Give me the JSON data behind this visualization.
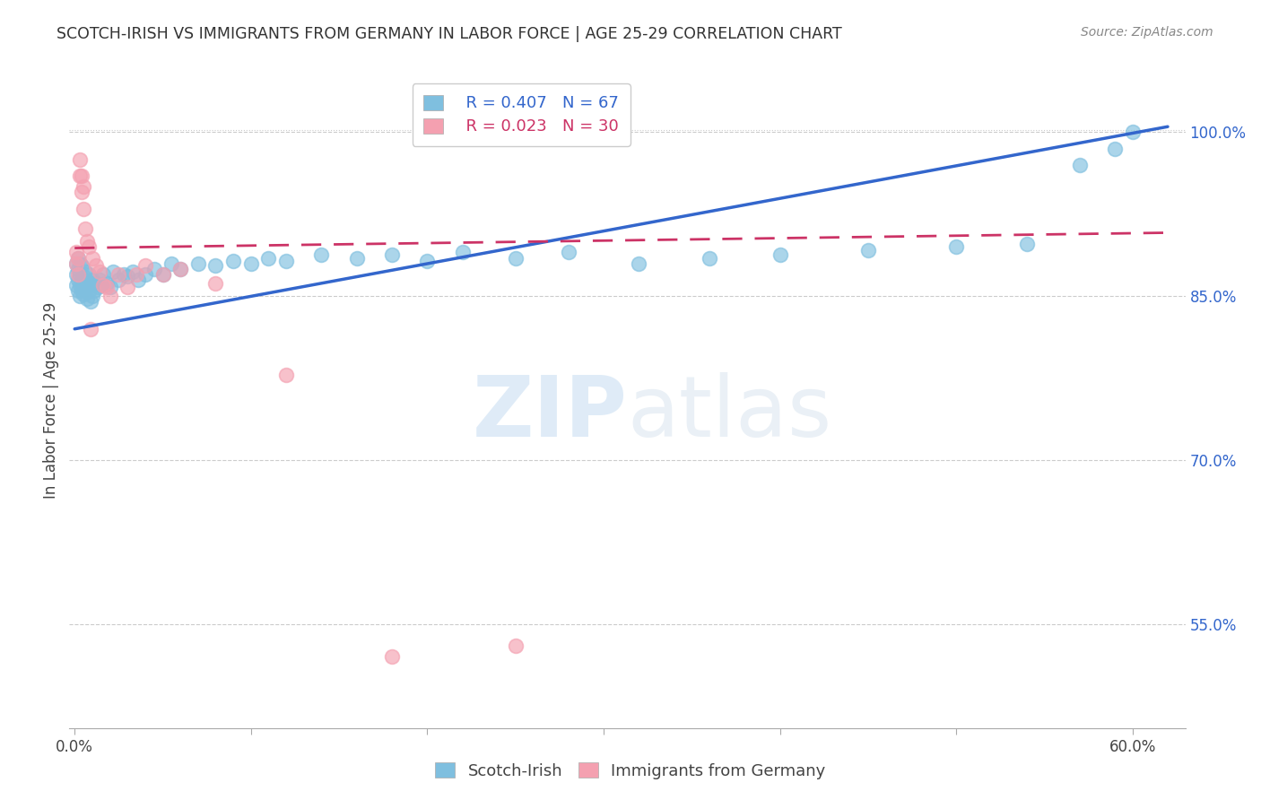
{
  "title": "SCOTCH-IRISH VS IMMIGRANTS FROM GERMANY IN LABOR FORCE | AGE 25-29 CORRELATION CHART",
  "source": "Source: ZipAtlas.com",
  "ylabel": "In Labor Force | Age 25-29",
  "watermark": "ZIPAtlas",
  "legend_blue_r": "R = 0.407",
  "legend_blue_n": "N = 67",
  "legend_pink_r": "R = 0.023",
  "legend_pink_n": "N = 30",
  "blue_color": "#7fbfdf",
  "pink_color": "#f4a0b0",
  "blue_line_color": "#3366cc",
  "pink_line_color": "#cc3366",
  "xlim_min": -0.003,
  "xlim_max": 0.63,
  "ylim_min": 0.455,
  "ylim_max": 1.055,
  "blue_x": [
    0.001,
    0.001,
    0.001,
    0.002,
    0.002,
    0.002,
    0.002,
    0.003,
    0.003,
    0.003,
    0.003,
    0.004,
    0.004,
    0.004,
    0.005,
    0.005,
    0.006,
    0.006,
    0.007,
    0.007,
    0.008,
    0.008,
    0.009,
    0.009,
    0.01,
    0.01,
    0.011,
    0.012,
    0.013,
    0.014,
    0.015,
    0.016,
    0.018,
    0.02,
    0.022,
    0.025,
    0.028,
    0.03,
    0.033,
    0.036,
    0.04,
    0.045,
    0.05,
    0.055,
    0.06,
    0.07,
    0.08,
    0.09,
    0.1,
    0.11,
    0.12,
    0.14,
    0.16,
    0.18,
    0.2,
    0.22,
    0.25,
    0.28,
    0.32,
    0.36,
    0.4,
    0.45,
    0.5,
    0.54,
    0.57,
    0.59,
    0.6
  ],
  "blue_y": [
    0.86,
    0.87,
    0.88,
    0.855,
    0.865,
    0.875,
    0.885,
    0.85,
    0.86,
    0.87,
    0.88,
    0.855,
    0.865,
    0.878,
    0.852,
    0.868,
    0.857,
    0.872,
    0.848,
    0.863,
    0.854,
    0.87,
    0.845,
    0.862,
    0.85,
    0.865,
    0.855,
    0.862,
    0.858,
    0.865,
    0.86,
    0.87,
    0.862,
    0.858,
    0.872,
    0.865,
    0.87,
    0.868,
    0.872,
    0.865,
    0.87,
    0.875,
    0.87,
    0.88,
    0.875,
    0.88,
    0.878,
    0.882,
    0.88,
    0.885,
    0.882,
    0.888,
    0.885,
    0.888,
    0.882,
    0.89,
    0.885,
    0.89,
    0.88,
    0.885,
    0.888,
    0.892,
    0.895,
    0.898,
    0.97,
    0.985,
    1.0
  ],
  "pink_x": [
    0.001,
    0.001,
    0.002,
    0.002,
    0.003,
    0.003,
    0.004,
    0.004,
    0.005,
    0.005,
    0.006,
    0.007,
    0.008,
    0.009,
    0.01,
    0.012,
    0.014,
    0.016,
    0.018,
    0.02,
    0.025,
    0.03,
    0.035,
    0.04,
    0.05,
    0.06,
    0.08,
    0.12,
    0.18,
    0.25
  ],
  "pink_y": [
    0.88,
    0.89,
    0.87,
    0.885,
    0.96,
    0.975,
    0.945,
    0.96,
    0.93,
    0.95,
    0.912,
    0.9,
    0.895,
    0.82,
    0.885,
    0.878,
    0.872,
    0.86,
    0.858,
    0.85,
    0.87,
    0.858,
    0.87,
    0.878,
    0.87,
    0.875,
    0.862,
    0.778,
    0.52,
    0.53
  ],
  "blue_trendline_x": [
    0.0,
    0.62
  ],
  "blue_trendline_y": [
    0.82,
    1.005
  ],
  "pink_trendline_x": [
    0.0,
    0.62
  ],
  "pink_trendline_y": [
    0.894,
    0.908
  ]
}
